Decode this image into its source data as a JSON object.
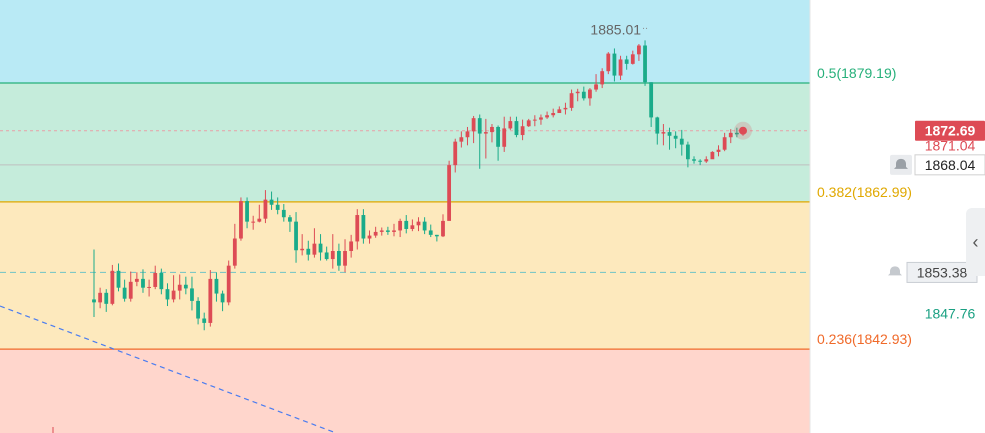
{
  "chart_data": {
    "type": "candlestick",
    "price_range": [
      1831.5,
      1890.5
    ],
    "bands": [
      {
        "from": 1879.19,
        "to": 1890.5,
        "color": "#b9eaf5"
      },
      {
        "from": 1862.99,
        "to": 1879.19,
        "color": "#c5ecdb"
      },
      {
        "from": 1842.93,
        "to": 1862.99,
        "color": "#fde9bd"
      },
      {
        "from": 1831.5,
        "to": 1842.93,
        "color": "#ffd6cc"
      }
    ],
    "fib_levels": [
      {
        "label": "0.5(1879.19)",
        "price": 1879.19,
        "color": "#26b07a"
      },
      {
        "label": "0.382(1862.99)",
        "price": 1862.99,
        "color": "#e0a800"
      },
      {
        "label": "0.236(1842.93)",
        "price": 1842.93,
        "color": "#f06a2a"
      }
    ],
    "current_price": {
      "label": "1872.69",
      "price": 1872.69,
      "color": "#dd4b55"
    },
    "price_labels": [
      {
        "label": "1871.04",
        "color": "#dd4b55",
        "price": 1871.04
      },
      {
        "label": "1868.04",
        "price": 1868.04
      },
      {
        "label": "1853.38",
        "price": 1853.38
      },
      {
        "label": "1847.76",
        "price": 1847.76,
        "color": "#1aa082"
      }
    ],
    "high_annotation": "1885.01",
    "up_color": "#dd4b55",
    "down_color": "#1aab8a",
    "candles": [
      [
        1849.7,
        1849.3,
        1856.5,
        1847.3
      ],
      [
        1849.3,
        1850.6,
        1851.3,
        1848.5
      ],
      [
        1850.6,
        1849.1,
        1851.1,
        1848.0
      ],
      [
        1849.1,
        1853.6,
        1854.4,
        1848.9
      ],
      [
        1853.6,
        1851.3,
        1854.6,
        1850.8
      ],
      [
        1851.3,
        1849.8,
        1852.4,
        1849.4
      ],
      [
        1849.8,
        1852.1,
        1853.5,
        1849.4
      ],
      [
        1852.1,
        1852.5,
        1853.4,
        1851.5
      ],
      [
        1852.5,
        1851.3,
        1853.8,
        1850.6
      ],
      [
        1851.3,
        1851.4,
        1852.4,
        1850.1
      ],
      [
        1851.4,
        1853.3,
        1854.3,
        1851.1
      ],
      [
        1853.3,
        1851.1,
        1853.9,
        1850.4
      ],
      [
        1851.1,
        1849.7,
        1851.9,
        1848.8
      ],
      [
        1849.7,
        1850.9,
        1853.0,
        1849.3
      ],
      [
        1850.9,
        1851.7,
        1853.1,
        1849.7
      ],
      [
        1851.7,
        1851.2,
        1852.8,
        1850.4
      ],
      [
        1851.2,
        1849.5,
        1852.8,
        1848.2
      ],
      [
        1849.5,
        1847.1,
        1850.0,
        1846.3
      ],
      [
        1847.1,
        1846.5,
        1847.9,
        1845.5
      ],
      [
        1846.5,
        1852.5,
        1853.7,
        1846.0
      ],
      [
        1852.5,
        1850.5,
        1853.4,
        1849.4
      ],
      [
        1850.5,
        1849.3,
        1850.9,
        1848.1
      ],
      [
        1849.3,
        1854.3,
        1855.0,
        1848.9
      ],
      [
        1854.3,
        1858.0,
        1860.0,
        1853.9
      ],
      [
        1858.0,
        1863.1,
        1863.6,
        1857.7
      ],
      [
        1863.1,
        1860.3,
        1863.6,
        1859.4
      ],
      [
        1860.3,
        1860.3,
        1861.1,
        1859.2
      ],
      [
        1860.3,
        1860.7,
        1862.6,
        1860.2
      ],
      [
        1860.7,
        1863.3,
        1864.6,
        1860.1
      ],
      [
        1863.3,
        1862.6,
        1864.4,
        1861.9
      ],
      [
        1862.6,
        1861.9,
        1863.6,
        1861.3
      ],
      [
        1861.9,
        1860.9,
        1862.7,
        1860.3
      ],
      [
        1860.9,
        1860.3,
        1861.2,
        1858.9
      ],
      [
        1860.3,
        1856.4,
        1861.6,
        1854.7
      ],
      [
        1856.4,
        1856.6,
        1858.6,
        1855.7
      ],
      [
        1856.6,
        1855.8,
        1857.7,
        1855.0
      ],
      [
        1855.8,
        1857.3,
        1859.4,
        1855.4
      ],
      [
        1857.3,
        1856.1,
        1858.6,
        1855.0
      ],
      [
        1856.1,
        1855.2,
        1856.9,
        1855.0
      ],
      [
        1855.2,
        1856.3,
        1858.6,
        1853.9
      ],
      [
        1856.3,
        1854.3,
        1857.3,
        1853.6
      ],
      [
        1854.3,
        1856.3,
        1857.9,
        1853.4
      ],
      [
        1856.3,
        1857.6,
        1858.5,
        1855.4
      ],
      [
        1857.6,
        1861.2,
        1862.0,
        1856.5
      ],
      [
        1861.2,
        1858.0,
        1862.0,
        1857.3
      ],
      [
        1858.0,
        1858.4,
        1859.1,
        1857.3
      ],
      [
        1858.4,
        1858.9,
        1859.6,
        1858.1
      ],
      [
        1858.9,
        1859.1,
        1859.5,
        1858.4
      ],
      [
        1859.1,
        1858.9,
        1859.6,
        1858.5
      ],
      [
        1858.9,
        1859.1,
        1860.0,
        1858.3
      ],
      [
        1859.1,
        1860.4,
        1860.7,
        1858.2
      ],
      [
        1860.4,
        1859.3,
        1861.2,
        1858.7
      ],
      [
        1859.3,
        1859.8,
        1860.6,
        1859.0
      ],
      [
        1859.8,
        1860.3,
        1860.9,
        1859.0
      ],
      [
        1860.3,
        1859.1,
        1860.9,
        1858.6
      ],
      [
        1859.1,
        1858.5,
        1859.9,
        1858.2
      ],
      [
        1858.5,
        1858.3,
        1858.5,
        1857.6
      ],
      [
        1858.3,
        1860.4,
        1861.3,
        1858.2
      ],
      [
        1860.4,
        1868.0,
        1868.6,
        1862.1
      ],
      [
        1868.0,
        1871.2,
        1871.6,
        1867.0
      ],
      [
        1871.2,
        1871.8,
        1872.6,
        1870.4
      ],
      [
        1871.8,
        1872.6,
        1873.2,
        1870.7
      ],
      [
        1872.6,
        1874.4,
        1874.7,
        1871.0
      ],
      [
        1874.4,
        1872.3,
        1874.9,
        1867.5
      ],
      [
        1872.3,
        1872.5,
        1874.3,
        1868.9
      ],
      [
        1872.5,
        1873.2,
        1873.6,
        1871.1
      ],
      [
        1873.2,
        1870.5,
        1873.4,
        1868.6
      ],
      [
        1870.5,
        1873.0,
        1874.6,
        1869.8
      ],
      [
        1873.0,
        1874.0,
        1874.6,
        1872.8
      ],
      [
        1874.0,
        1872.1,
        1874.6,
        1871.8
      ],
      [
        1872.1,
        1873.3,
        1874.2,
        1871.4
      ],
      [
        1873.3,
        1874.1,
        1874.3,
        1873.2
      ],
      [
        1874.1,
        1874.2,
        1874.8,
        1873.3
      ],
      [
        1874.2,
        1874.5,
        1874.9,
        1873.5
      ],
      [
        1874.5,
        1874.8,
        1875.3,
        1874.3
      ],
      [
        1874.8,
        1875.1,
        1875.7,
        1874.5
      ],
      [
        1875.1,
        1875.6,
        1876.0,
        1875.2
      ],
      [
        1875.6,
        1875.8,
        1876.5,
        1874.9
      ],
      [
        1875.8,
        1877.8,
        1878.3,
        1875.4
      ],
      [
        1877.8,
        1878.0,
        1878.4,
        1876.7
      ],
      [
        1878.0,
        1877.1,
        1878.7,
        1876.8
      ],
      [
        1877.1,
        1878.3,
        1878.5,
        1876.1
      ],
      [
        1878.3,
        1879.0,
        1880.4,
        1878.0
      ],
      [
        1879.0,
        1880.8,
        1881.2,
        1878.5
      ],
      [
        1880.8,
        1883.2,
        1883.4,
        1880.4
      ],
      [
        1883.2,
        1880.2,
        1883.9,
        1879.4
      ],
      [
        1880.2,
        1882.4,
        1882.9,
        1879.6
      ],
      [
        1882.4,
        1881.8,
        1882.9,
        1881.0
      ],
      [
        1881.8,
        1883.1,
        1883.6,
        1881.7
      ],
      [
        1883.1,
        1884.3,
        1884.5,
        1882.2
      ],
      [
        1884.3,
        1879.3,
        1885.0,
        1878.8
      ],
      [
        1879.3,
        1874.5,
        1879.3,
        1873.2
      ],
      [
        1874.5,
        1872.3,
        1874.6,
        1870.8
      ],
      [
        1872.3,
        1872.5,
        1873.6,
        1870.7
      ],
      [
        1872.5,
        1872.0,
        1873.1,
        1870.1
      ],
      [
        1872.0,
        1871.6,
        1872.6,
        1870.3
      ],
      [
        1871.6,
        1870.8,
        1872.8,
        1869.3
      ],
      [
        1870.8,
        1868.8,
        1871.2,
        1867.7
      ],
      [
        1868.8,
        1868.6,
        1869.2,
        1868.2
      ],
      [
        1868.6,
        1868.5,
        1868.8,
        1868.0
      ],
      [
        1868.5,
        1868.8,
        1869.2,
        1868.3
      ],
      [
        1868.8,
        1869.8,
        1869.9,
        1868.9
      ],
      [
        1869.8,
        1870.1,
        1870.7,
        1869.2
      ],
      [
        1870.1,
        1871.8,
        1872.4,
        1869.9
      ],
      [
        1871.8,
        1872.4,
        1872.9,
        1871.0
      ],
      [
        1872.4,
        1872.2,
        1873.1,
        1871.8
      ],
      [
        1872.2,
        1872.7,
        1873.2,
        1872.0
      ]
    ]
  }
}
